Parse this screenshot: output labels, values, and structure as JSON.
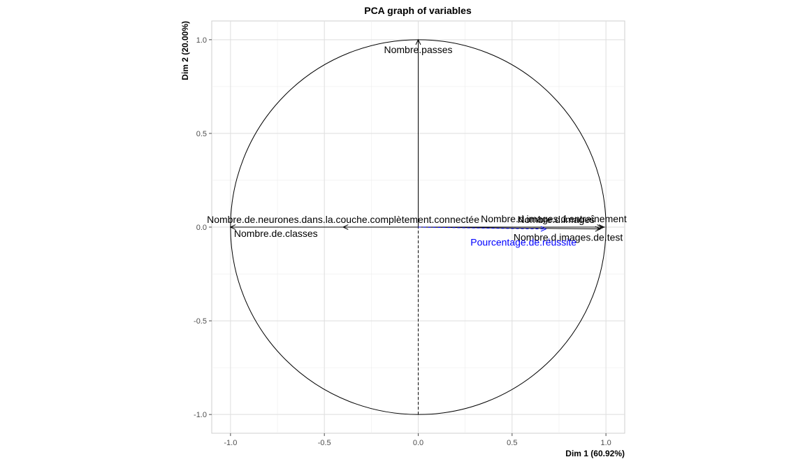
{
  "chart_data": {
    "type": "scatter",
    "subtype": "pca-correlation-circle",
    "title": "PCA graph of variables",
    "xlabel": "Dim 1 (60.92%)",
    "ylabel": "Dim 2 (20.00%)",
    "xlim": [
      -1.1,
      1.1
    ],
    "ylim": [
      -1.1,
      1.1
    ],
    "xticks": [
      -1.0,
      -0.5,
      0.0,
      0.5,
      1.0
    ],
    "yticks": [
      -1.0,
      -0.5,
      0.0,
      0.5,
      1.0
    ],
    "xtick_labels": [
      "-1.0",
      "-0.5",
      "0.0",
      "0.5",
      "1.0"
    ],
    "ytick_labels": [
      "-1.0",
      "-0.5",
      "0.0",
      "0.5",
      "1.0"
    ],
    "grid": true,
    "unit_circle": true,
    "variables": [
      {
        "name": "Nombre.passes",
        "x": 0.0,
        "y": 1.0,
        "color": "#000000",
        "supplementary": false
      },
      {
        "name": "Nombre.de.neurones.dans.la.couche.complètement.connectée",
        "x": -0.4,
        "y": 0.0,
        "color": "#000000",
        "supplementary": false
      },
      {
        "name": "Nombre.de.classes",
        "x": -1.0,
        "y": 0.0,
        "color": "#000000",
        "supplementary": false
      },
      {
        "name": "Nombre.d.images",
        "x": 0.98,
        "y": 0.0,
        "color": "#000000",
        "supplementary": false
      },
      {
        "name": "Nombre.d.images.d.entraînement",
        "x": 0.99,
        "y": 0.0,
        "color": "#000000",
        "supplementary": false
      },
      {
        "name": "Nombre.d.images.de.test",
        "x": 0.97,
        "y": -0.01,
        "color": "#000000",
        "supplementary": false
      },
      {
        "name": "Pourcentage.de.réussite",
        "x": 0.68,
        "y": -0.01,
        "color": "#0000ff",
        "supplementary": true
      }
    ]
  }
}
